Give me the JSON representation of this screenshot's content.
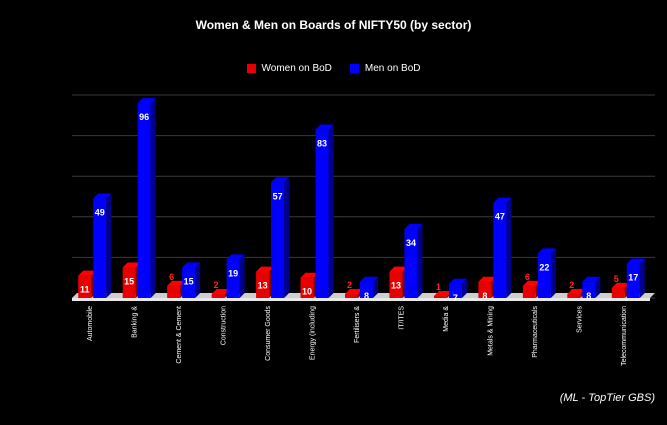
{
  "chart_data": {
    "type": "bar",
    "title": "Women & Men on Boards of NIFTY50 (by sector)",
    "categories": [
      "Automobile",
      "Banking &",
      "Cement & Cement",
      "Construction",
      "Consumer Goods",
      "Energy (including",
      "Fertilisers &",
      "IT/ITES",
      "Media &",
      "Metals & Mining",
      "Pharmaceuticals",
      "Services",
      "Telecommunication"
    ],
    "series": [
      {
        "name": "Women on BoD",
        "color": "#e60000",
        "values": [
          11,
          15,
          6,
          2,
          13,
          10,
          2,
          13,
          1,
          8,
          6,
          2,
          5
        ]
      },
      {
        "name": "Men on BoD",
        "color": "#0000ff",
        "values": [
          49,
          96,
          15,
          19,
          57,
          83,
          8,
          34,
          7,
          47,
          22,
          8,
          17
        ]
      }
    ],
    "ylim": [
      0,
      100
    ],
    "grid": true,
    "legend_position": "top",
    "background": "#000000"
  },
  "source_note": "(ML - TopTier GBS)"
}
